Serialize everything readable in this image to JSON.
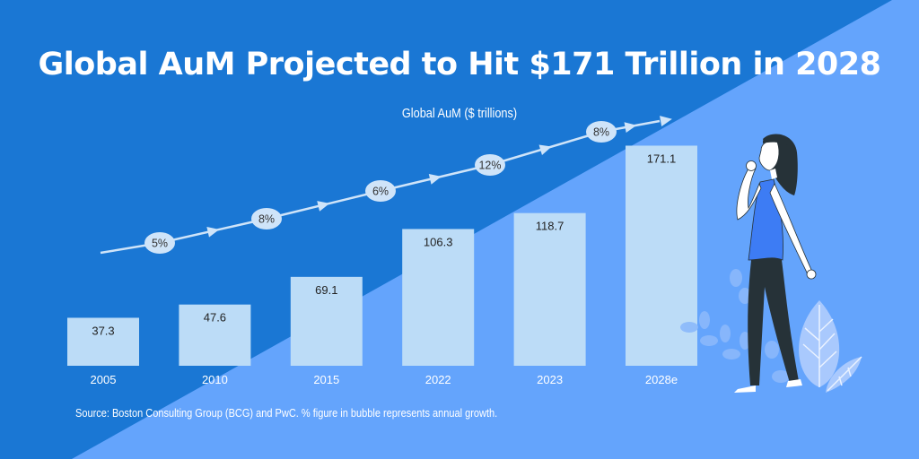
{
  "title": "Global AuM Projected to Hit $171 Trillion in 2028",
  "source": "Source: Boston Consulting Group (BCG) and PwC. % figure in bubble represents annual growth.",
  "colors": {
    "background_dark": "#1a77d4",
    "background_light": "#64a4fc",
    "bar": "#bcdcf7",
    "bubble": "#cfe4f9",
    "text": "#ffffff"
  },
  "illustration": "woman-walking-with-leaves",
  "chart_data": {
    "type": "bar",
    "title": "Global AuM ($ trillions)",
    "categories": [
      "2005",
      "2010",
      "2015",
      "2022",
      "2023",
      "2028e"
    ],
    "values": [
      37.3,
      47.6,
      69.1,
      106.3,
      118.7,
      171.1
    ],
    "value_labels": [
      "37.3",
      "47.6",
      "69.1",
      "106.3",
      "118.7",
      "171.1"
    ],
    "ylim": [
      0,
      175
    ],
    "grid": false,
    "growth_bubbles": [
      "5%",
      "8%",
      "6%",
      "12%",
      "8%"
    ]
  }
}
